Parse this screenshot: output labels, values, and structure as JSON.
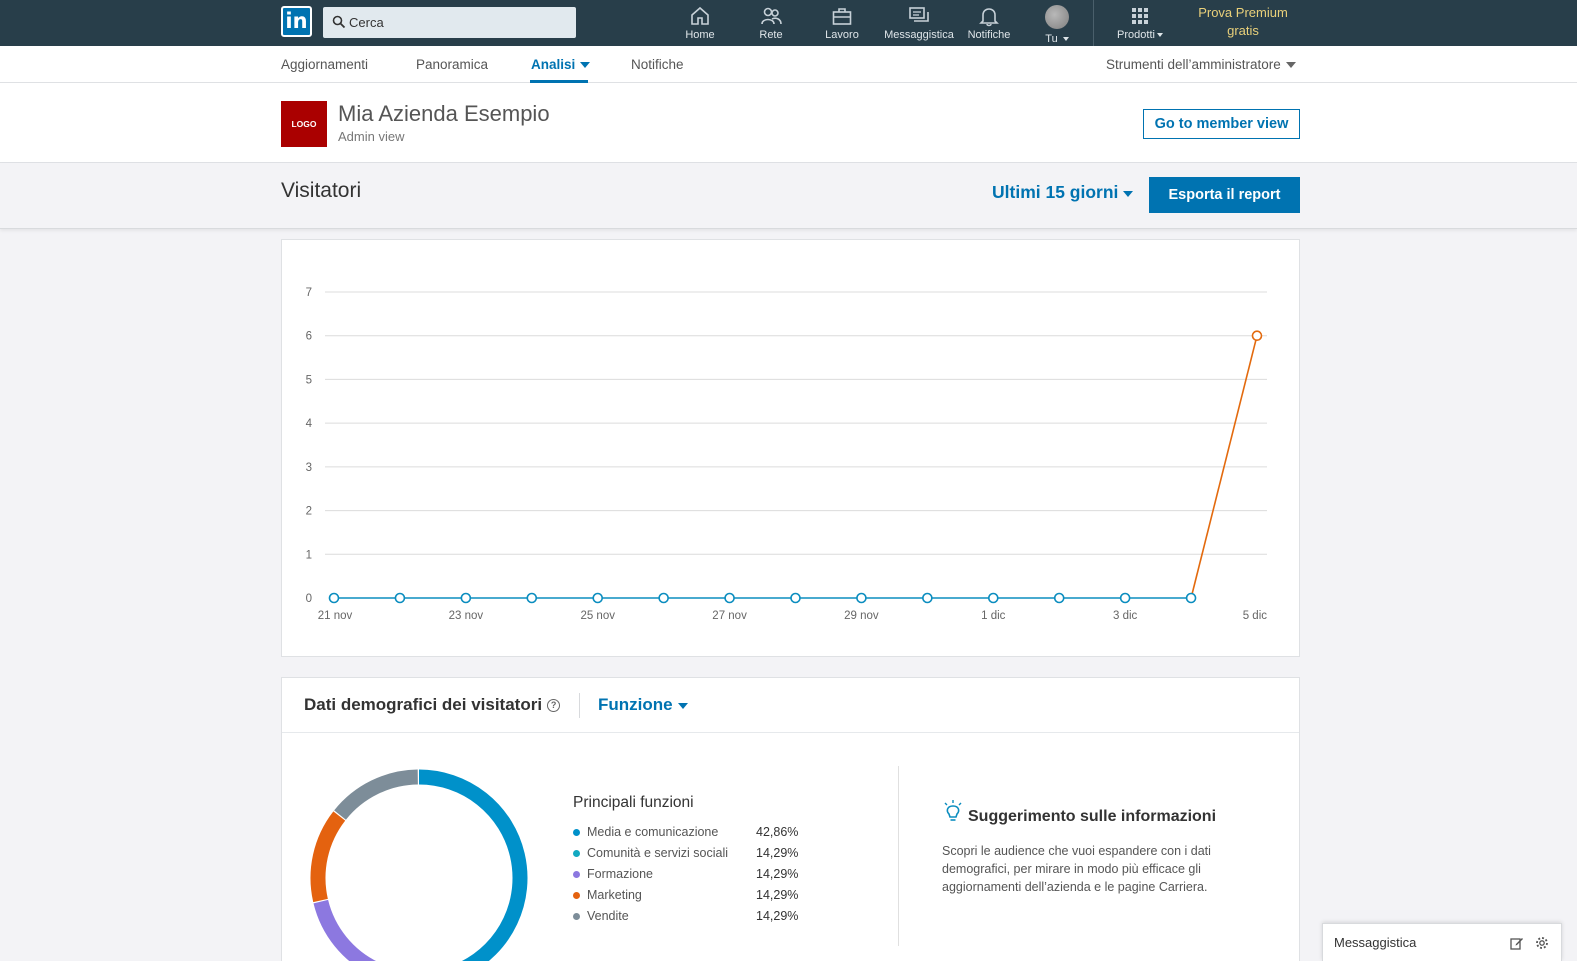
{
  "topnav": {
    "logo": "in",
    "search_placeholder": "Cerca",
    "items": [
      {
        "label": "Home",
        "icon": "home-icon"
      },
      {
        "label": "Rete",
        "icon": "network-icon"
      },
      {
        "label": "Lavoro",
        "icon": "briefcase-icon"
      },
      {
        "label": "Messaggistica",
        "icon": "messaging-icon"
      },
      {
        "label": "Notifiche",
        "icon": "bell-icon"
      },
      {
        "label": "Tu",
        "icon": "avatar"
      },
      {
        "label": "Prodotti",
        "icon": "grid-icon"
      }
    ],
    "premium_line1": "Prova Premium",
    "premium_line2": "gratis"
  },
  "subnav": {
    "tabs": [
      "Aggiornamenti",
      "Panoramica",
      "Analisi",
      "Notifiche"
    ],
    "active_tab": "Analisi",
    "admin_tools": "Strumenti dell’amministratore"
  },
  "company": {
    "logo_text": "LOGO",
    "name": "Mia Azienda Esempio",
    "subtitle": "Admin view",
    "member_view_button": "Go to member view"
  },
  "visitors": {
    "title": "Visitatori",
    "period": "Ultimi 15 giorni",
    "export_button": "Esporta il report"
  },
  "chart_data": {
    "type": "line",
    "x": [
      "21 nov",
      "22 nov",
      "23 nov",
      "24 nov",
      "25 nov",
      "26 nov",
      "27 nov",
      "28 nov",
      "29 nov",
      "30 nov",
      "1 dic",
      "2 dic",
      "3 dic",
      "4 dic",
      "5 dic"
    ],
    "x_tick_labels": [
      "21 nov",
      "23 nov",
      "25 nov",
      "27 nov",
      "29 nov",
      "1 dic",
      "3 dic",
      "5 dic"
    ],
    "series": [
      {
        "values": [
          0,
          0,
          0,
          0,
          0,
          0,
          0,
          0,
          0,
          0,
          0,
          0,
          0,
          0,
          6
        ]
      }
    ],
    "ylim": [
      0,
      7
    ],
    "y_ticks": [
      0,
      1,
      2,
      3,
      4,
      5,
      6,
      7
    ],
    "grid": true,
    "colors": {
      "line": "#0b8dbf",
      "highlight": "#e36a0e",
      "grid": "#dcdcdc"
    }
  },
  "demographics": {
    "title": "Dati demografici dei visitatori",
    "help_icon": "?",
    "selector": "Funzione",
    "list_title": "Principali funzioni",
    "items": [
      {
        "name": "Media e comunicazione",
        "pct": "42,86%",
        "value": 42.86,
        "color": "#0091ca"
      },
      {
        "name": "Comunità e servizi sociali",
        "pct": "14,29%",
        "value": 14.29,
        "color": "#13a9c1"
      },
      {
        "name": "Formazione",
        "pct": "14,29%",
        "value": 14.29,
        "color": "#8c78e0"
      },
      {
        "name": "Marketing",
        "pct": "14,29%",
        "value": 14.29,
        "color": "#e4620f"
      },
      {
        "name": "Vendite",
        "pct": "14,29%",
        "value": 14.29,
        "color": "#7d8d99"
      }
    ],
    "tip_title": "Suggerimento sulle informazioni",
    "tip_text": "Scopri le audience che vuoi espandere con i dati demografici, per mirare in modo più efficace gli aggiornamenti dell’azienda e le pagine Carriera."
  },
  "messaging": {
    "label": "Messaggistica"
  }
}
